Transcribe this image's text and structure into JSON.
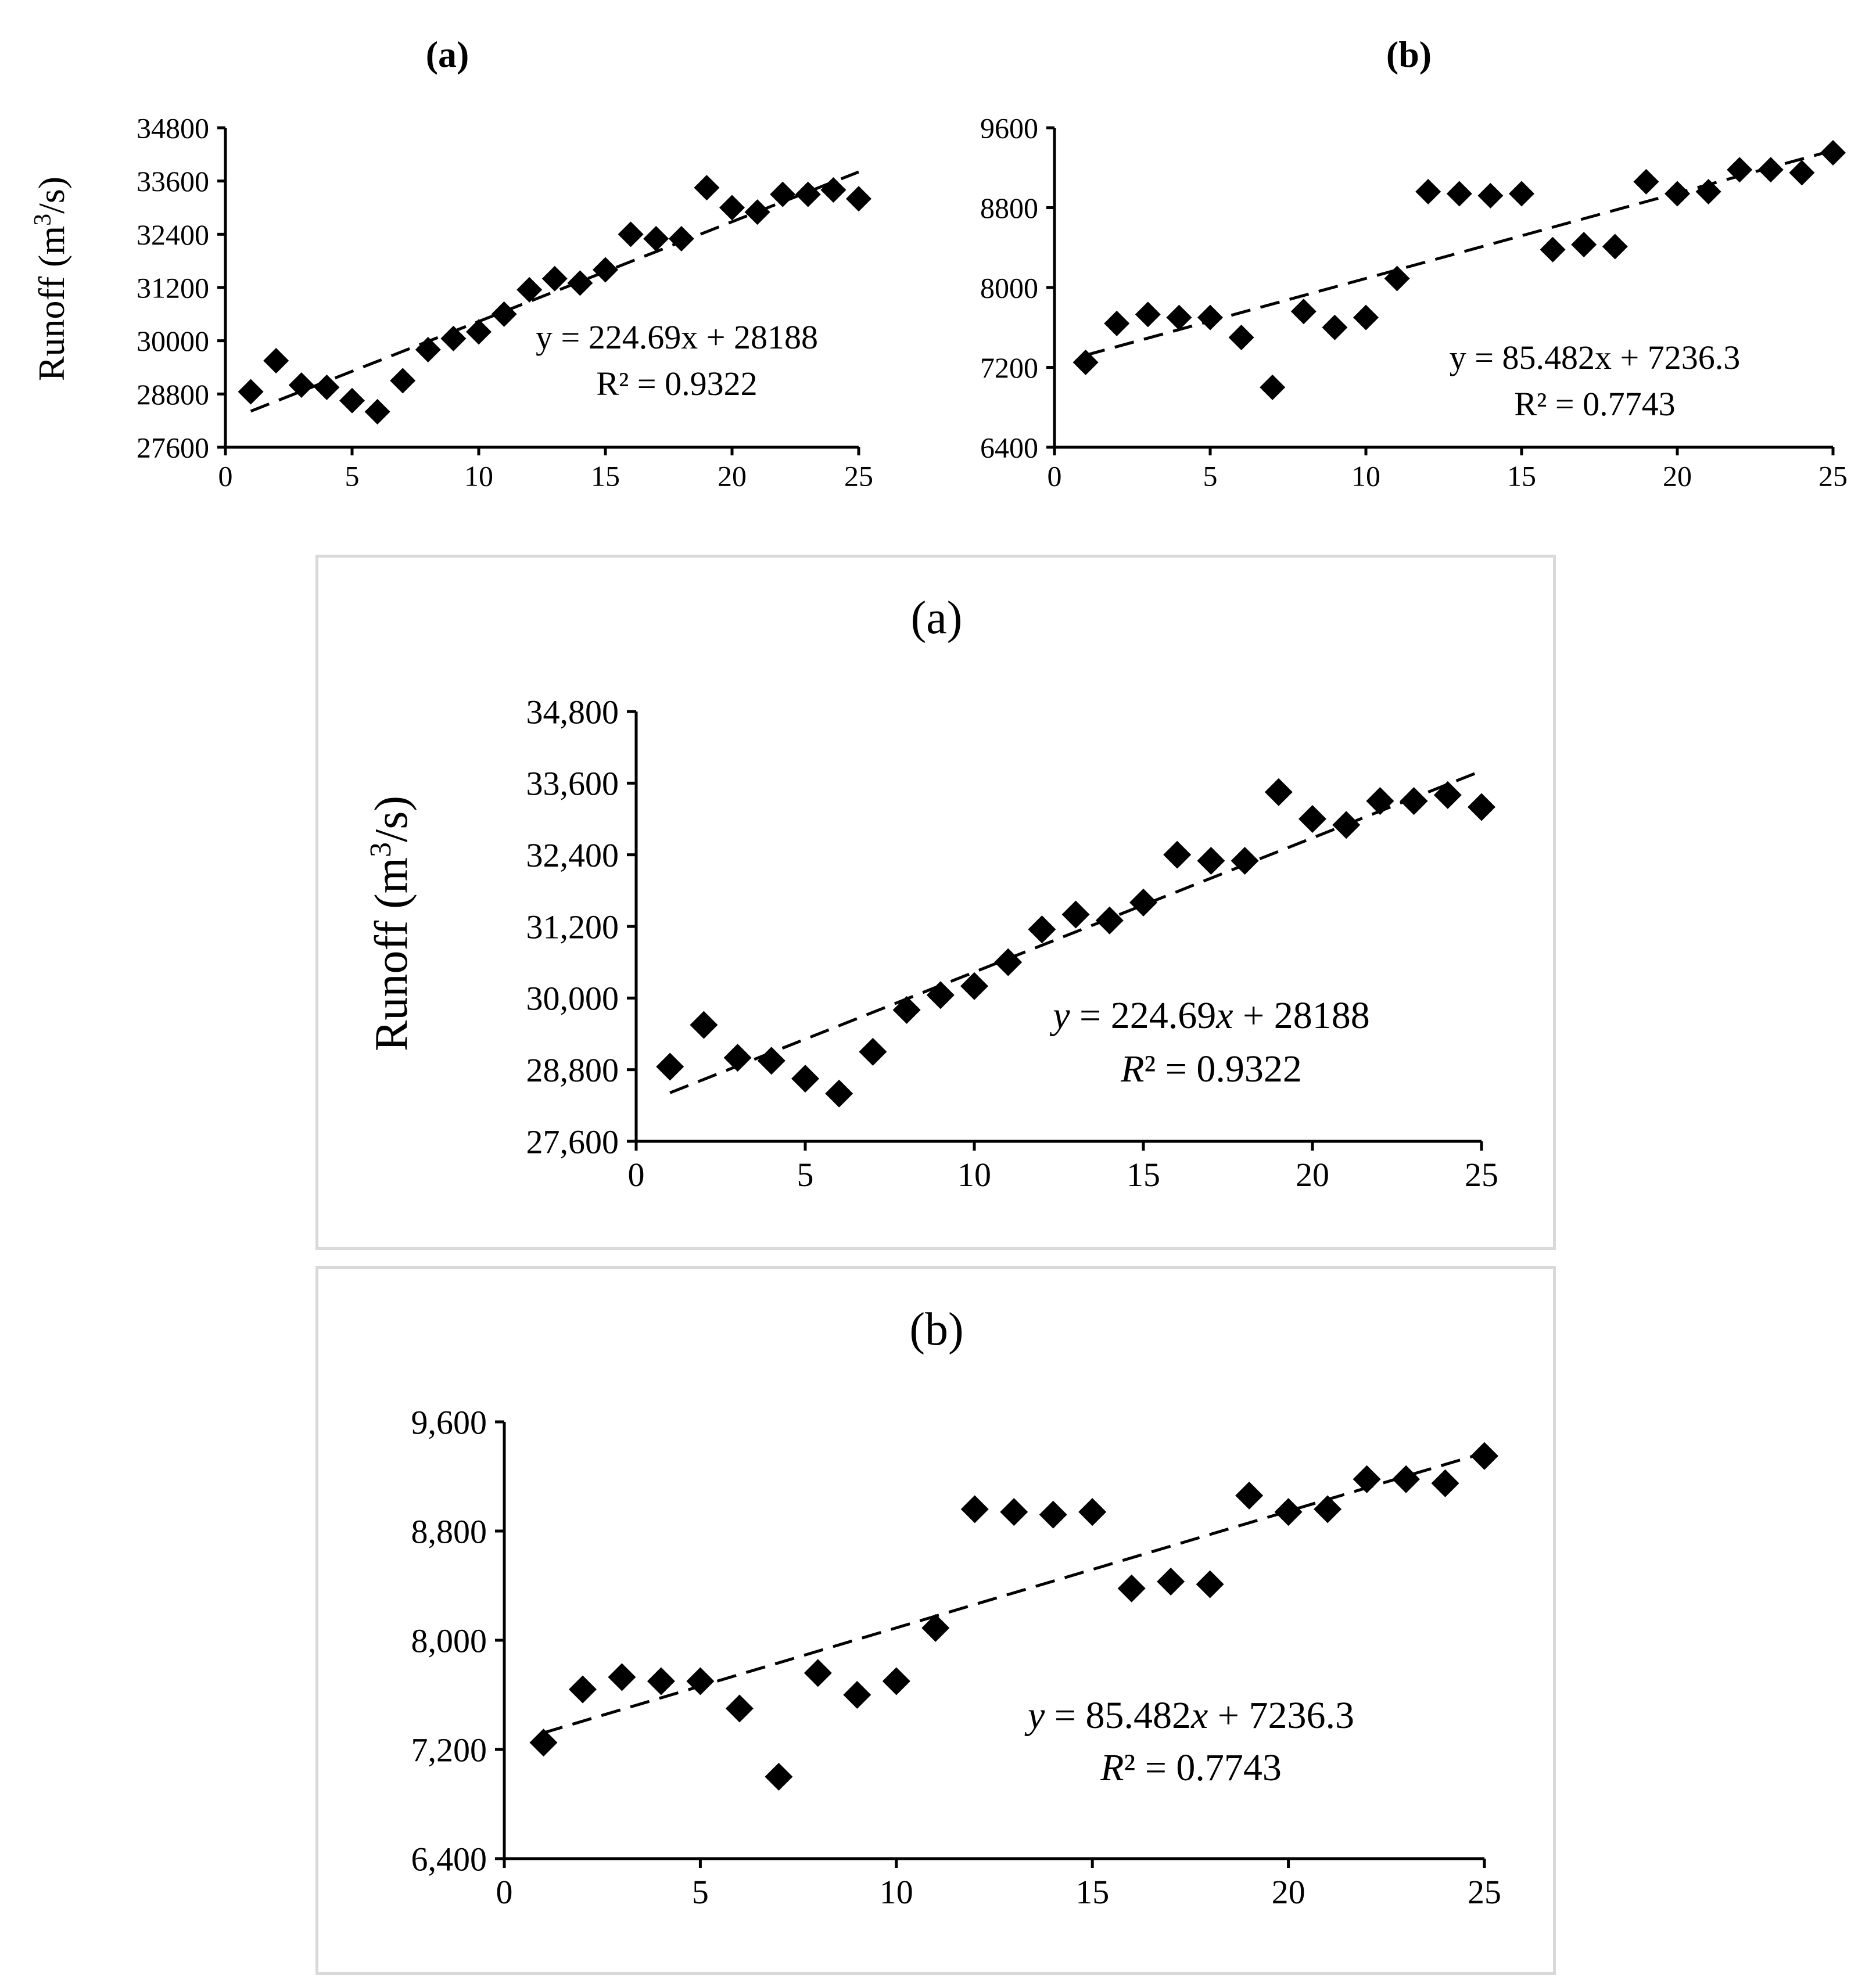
{
  "chart_data": [
    {
      "id": "top-a",
      "type": "scatter",
      "title": "(a)",
      "title_weight": "bold",
      "ylabel": "Runoff (m3/s)",
      "xlabel": "",
      "x": [
        1,
        2,
        3,
        4,
        5,
        6,
        7,
        8,
        9,
        10,
        11,
        12,
        13,
        14,
        15,
        16,
        17,
        18,
        19,
        20,
        21,
        22,
        23,
        24,
        25
      ],
      "y": [
        28850,
        29550,
        29000,
        28950,
        28650,
        28400,
        29100,
        29800,
        30050,
        30200,
        30600,
        31150,
        31400,
        31300,
        31600,
        32400,
        32300,
        32300,
        33450,
        33000,
        32900,
        33300,
        33300,
        33400,
        33200
      ],
      "xlim": [
        0,
        25
      ],
      "ylim": [
        27600,
        34800
      ],
      "xticks": [
        "0",
        "5",
        "10",
        "15",
        "20",
        "25"
      ],
      "yticks": [
        "27600",
        "28800",
        "30000",
        "31200",
        "32400",
        "33600",
        "34800"
      ],
      "trendline": {
        "slope": 224.69,
        "intercept": 28188
      },
      "equation": "y = 224.69x + 28188",
      "r2": "R² = 0.9322"
    },
    {
      "id": "top-b",
      "type": "scatter",
      "title": "(b)",
      "title_weight": "bold",
      "ylabel": "",
      "xlabel": "",
      "x": [
        1,
        2,
        3,
        4,
        5,
        6,
        7,
        8,
        9,
        10,
        11,
        12,
        13,
        14,
        15,
        16,
        17,
        18,
        19,
        20,
        21,
        22,
        23,
        24,
        25
      ],
      "y": [
        7250,
        7640,
        7730,
        7700,
        7700,
        7500,
        7000,
        7760,
        7600,
        7700,
        8090,
        8960,
        8940,
        8920,
        8940,
        8380,
        8430,
        8410,
        9060,
        8940,
        8960,
        9180,
        9180,
        9150,
        9350
      ],
      "xlim": [
        0,
        25
      ],
      "ylim": [
        6400,
        9600
      ],
      "xticks": [
        "0",
        "5",
        "10",
        "15",
        "20",
        "25"
      ],
      "yticks": [
        "6400",
        "7200",
        "8000",
        "8800",
        "9600"
      ],
      "trendline": {
        "slope": 85.482,
        "intercept": 7236.3
      },
      "equation": "y = 85.482x + 7236.3",
      "r2": "R² = 0.7743"
    },
    {
      "id": "mid-a",
      "type": "scatter",
      "title": "(a)",
      "title_weight": "normal",
      "ylabel": "Runoff (m3/s)",
      "xlabel": "",
      "x": [
        1,
        2,
        3,
        4,
        5,
        6,
        7,
        8,
        9,
        10,
        11,
        12,
        13,
        14,
        15,
        16,
        17,
        18,
        19,
        20,
        21,
        22,
        23,
        24,
        25
      ],
      "y": [
        28850,
        29550,
        29000,
        28950,
        28650,
        28400,
        29100,
        29800,
        30050,
        30200,
        30600,
        31150,
        31400,
        31300,
        31600,
        32400,
        32300,
        32300,
        33450,
        33000,
        32900,
        33300,
        33300,
        33400,
        33200
      ],
      "xlim": [
        0,
        25
      ],
      "ylim": [
        27600,
        34800
      ],
      "xticks": [
        "0",
        "5",
        "10",
        "15",
        "20",
        "25"
      ],
      "yticks": [
        "27,600",
        "28,800",
        "30,000",
        "31,200",
        "32,400",
        "33,600",
        "34,800"
      ],
      "trendline": {
        "slope": 224.69,
        "intercept": 28188
      },
      "equation": "y = 224.69x + 28188",
      "r2": "R² = 0.9322"
    },
    {
      "id": "bot-b",
      "type": "scatter",
      "title": "(b)",
      "title_weight": "normal",
      "ylabel": "",
      "xlabel": "",
      "x": [
        1,
        2,
        3,
        4,
        5,
        6,
        7,
        8,
        9,
        10,
        11,
        12,
        13,
        14,
        15,
        16,
        17,
        18,
        19,
        20,
        21,
        22,
        23,
        24,
        25
      ],
      "y": [
        7250,
        7640,
        7730,
        7700,
        7700,
        7500,
        7000,
        7760,
        7600,
        7700,
        8090,
        8960,
        8940,
        8920,
        8940,
        8380,
        8430,
        8410,
        9060,
        8940,
        8960,
        9180,
        9180,
        9150,
        9350
      ],
      "xlim": [
        0,
        25
      ],
      "ylim": [
        6400,
        9600
      ],
      "xticks": [
        "0",
        "5",
        "10",
        "15",
        "20",
        "25"
      ],
      "yticks": [
        "6,400",
        "7,200",
        "8,000",
        "8,800",
        "9,600"
      ],
      "trendline": {
        "slope": 85.482,
        "intercept": 7236.3
      },
      "equation": "y = 85.482x + 7236.3",
      "r2": "R² = 0.7743"
    }
  ]
}
